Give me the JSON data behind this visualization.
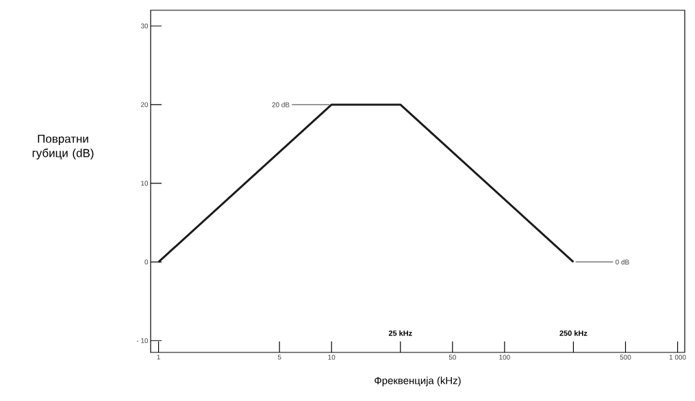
{
  "chart_data": {
    "type": "line",
    "xlabel": "Фреквенција (kHz)",
    "ylabel": "Повратни губици (dB)",
    "log": "x",
    "xlim": [
      0.9,
      1100
    ],
    "ylim": [
      -11.5,
      32
    ],
    "xticks": [
      1,
      5,
      10,
      {
        "value": 25,
        "label": null
      },
      50,
      100,
      {
        "value": 250,
        "label": null
      },
      500,
      {
        "value": 1000,
        "label": "1 000"
      }
    ],
    "yticks": [
      {
        "value": -10,
        "label": "- 10"
      },
      0,
      10,
      20,
      30
    ],
    "x": [
      1,
      10,
      25,
      250
    ],
    "series": [
      {
        "color": "#1a1a1a",
        "values": [
          0,
          20,
          20,
          0
        ]
      }
    ],
    "annotations": [
      {
        "text": "20 dB",
        "x": 10,
        "y": 20
      },
      {
        "text": "0 dB",
        "x": 250,
        "y": 0
      },
      {
        "text": "25 kHz",
        "x": 25
      },
      {
        "text": "250 kHz",
        "x": 250
      }
    ],
    "grid": false,
    "marker": "none",
    "line_style": "solid"
  }
}
